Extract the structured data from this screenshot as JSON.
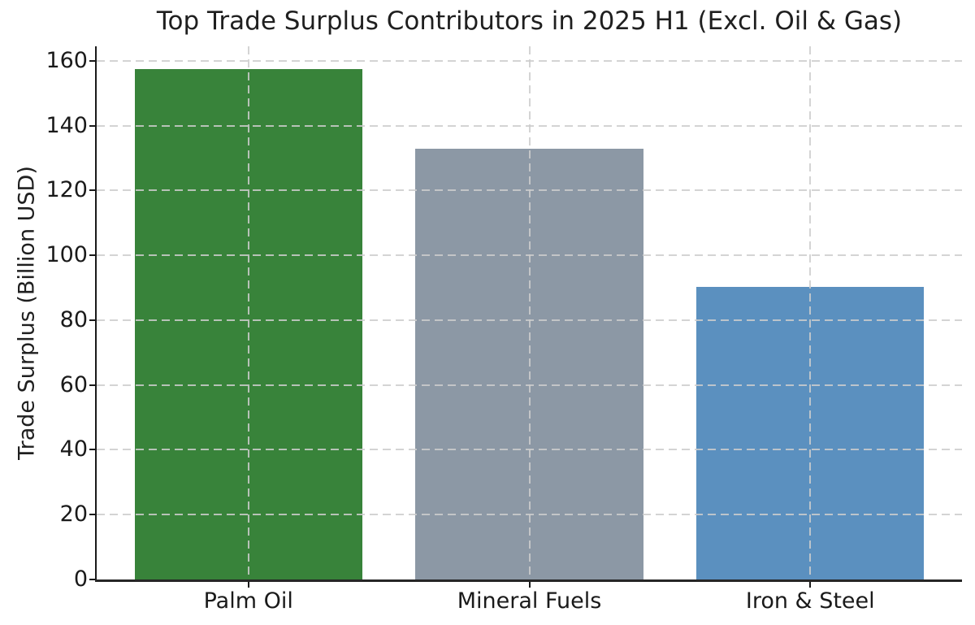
{
  "chart_data": {
    "type": "bar",
    "title": "Top Trade Surplus Contributors in 2025 H1 (Excl. Oil & Gas)",
    "xlabel": "",
    "ylabel": "Trade Surplus (Billion USD)",
    "categories": [
      "Palm Oil",
      "Mineral Fuels",
      "Iron & Steel"
    ],
    "values": [
      157.5,
      132.8,
      90.4
    ],
    "bar_colors": [
      "#38833a",
      "#8c98a5",
      "#5b90bf"
    ],
    "yticks": [
      0,
      20,
      40,
      60,
      80,
      100,
      120,
      140,
      160
    ],
    "ylim": [
      0,
      164.5
    ],
    "xlim": [
      -0.54,
      2.54
    ],
    "bar_width_fraction": 0.81,
    "grid": {
      "visible": true,
      "axis": "both",
      "style": "dashed",
      "color": "#cdcdcd",
      "above_bars": true
    },
    "legend": "none",
    "background_color": "#ffffff",
    "text_color": "#1a1a1a",
    "spine_color": "#1a1a1a"
  }
}
